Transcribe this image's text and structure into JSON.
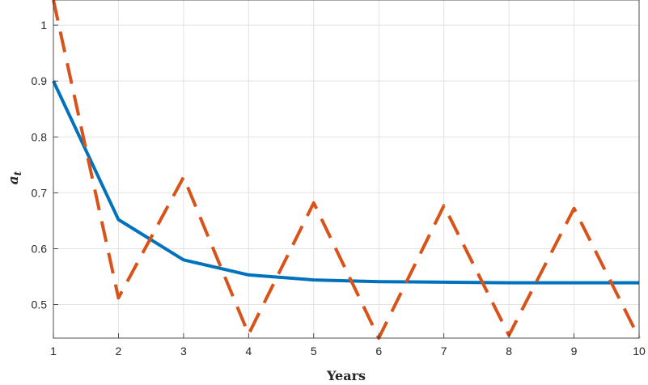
{
  "chart_data": {
    "type": "line",
    "xlabel": "Years",
    "ylabel": {
      "main": "a",
      "sub": "t"
    },
    "xlim": [
      1,
      10
    ],
    "ylim": [
      0.44,
      1.045
    ],
    "xticks": [
      1,
      2,
      3,
      4,
      5,
      6,
      7,
      8,
      9,
      10
    ],
    "yticks": [
      0.5,
      0.6,
      0.7,
      0.8,
      0.9,
      1
    ],
    "ytick_labels": [
      "0.5",
      "0.6",
      "0.7",
      "0.8",
      "0.9",
      "1"
    ],
    "grid": true,
    "series": [
      {
        "style": "solid",
        "color": "#0072BD",
        "x": [
          1,
          2,
          3,
          4,
          5,
          6,
          7,
          8,
          9,
          10
        ],
        "y": [
          0.9,
          0.652,
          0.58,
          0.553,
          0.544,
          0.541,
          0.54,
          0.539,
          0.539,
          0.539
        ]
      },
      {
        "style": "dashed",
        "color": "#D95319",
        "x": [
          1,
          2,
          3,
          4,
          5,
          6,
          7,
          8,
          9,
          10
        ],
        "y": [
          1.045,
          0.512,
          0.728,
          0.447,
          0.682,
          0.44,
          0.677,
          0.445,
          0.672,
          0.44
        ]
      }
    ]
  }
}
